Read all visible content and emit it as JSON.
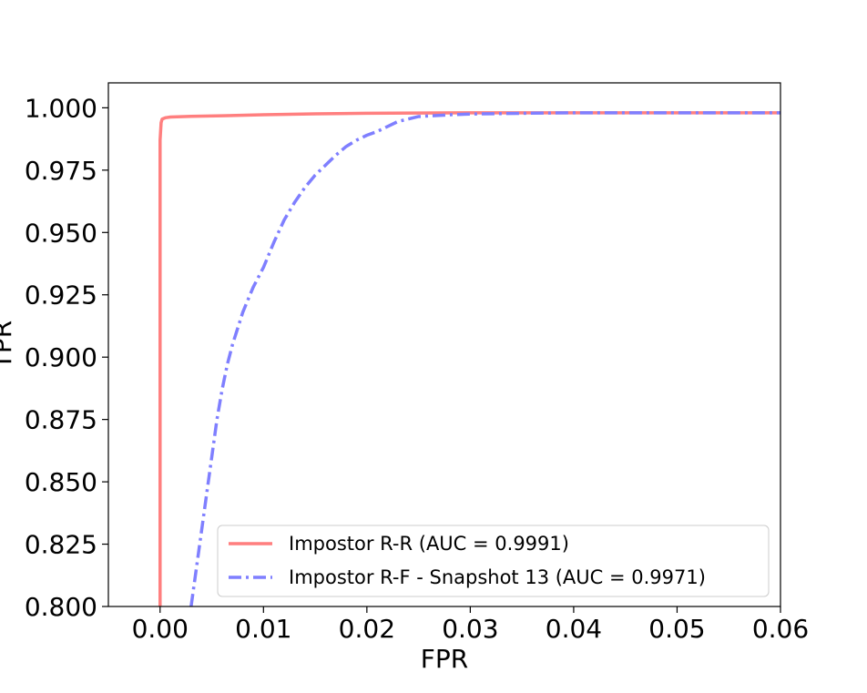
{
  "chart_data": {
    "type": "line",
    "xlabel": "FPR",
    "ylabel": "TPR",
    "xlim": [
      -0.005,
      0.06
    ],
    "ylim": [
      0.8,
      1.01
    ],
    "x_ticks": [
      "0.00",
      "0.01",
      "0.02",
      "0.03",
      "0.04",
      "0.05",
      "0.06"
    ],
    "y_ticks": [
      "0.800",
      "0.825",
      "0.850",
      "0.875",
      "0.900",
      "0.925",
      "0.950",
      "0.975",
      "1.000"
    ],
    "grid": false,
    "legend_position": "lower-right",
    "series": [
      {
        "name": "Impostor R-R (AUC = 0.9991)",
        "color": "#ff7f7f",
        "style": "solid",
        "x": [
          0.0,
          0.0,
          0.0,
          0.0001,
          0.0002,
          0.0005,
          0.001,
          0.003,
          0.006,
          0.01,
          0.015,
          0.02,
          0.03,
          0.04,
          0.05,
          0.06
        ],
        "y": [
          0.8,
          0.95,
          0.987,
          0.994,
          0.9955,
          0.996,
          0.9963,
          0.9966,
          0.9968,
          0.9972,
          0.9976,
          0.9978,
          0.998,
          0.998,
          0.998,
          0.998
        ]
      },
      {
        "name": "Impostor R-F - Snapshot 13 (AUC = 0.9971)",
        "color": "#7f7fff",
        "style": "dashdot",
        "x": [
          0.003,
          0.0035,
          0.004,
          0.0045,
          0.005,
          0.0055,
          0.006,
          0.0065,
          0.007,
          0.008,
          0.009,
          0.01,
          0.011,
          0.012,
          0.013,
          0.014,
          0.015,
          0.016,
          0.017,
          0.018,
          0.019,
          0.02,
          0.021,
          0.022,
          0.023,
          0.025,
          0.028,
          0.03,
          0.035,
          0.04,
          0.045,
          0.05,
          0.06
        ],
        "y": [
          0.8,
          0.815,
          0.83,
          0.845,
          0.86,
          0.875,
          0.887,
          0.897,
          0.905,
          0.918,
          0.928,
          0.936,
          0.946,
          0.955,
          0.962,
          0.968,
          0.973,
          0.977,
          0.981,
          0.9845,
          0.987,
          0.989,
          0.9905,
          0.9925,
          0.9945,
          0.9965,
          0.9972,
          0.9975,
          0.9978,
          0.998,
          0.998,
          0.998,
          0.998
        ]
      }
    ]
  }
}
